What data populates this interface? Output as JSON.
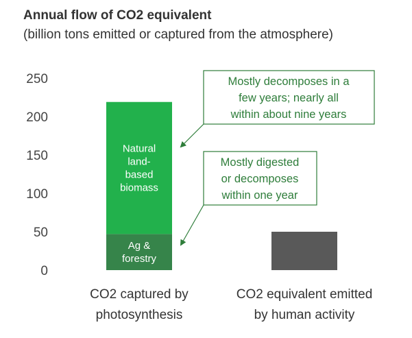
{
  "chart_data": {
    "type": "bar",
    "stacked": true,
    "title": "Annual flow of CO2 equivalent",
    "subtitle": "(billion tons emitted or captured from the atmosphere)",
    "ylim": [
      0,
      250
    ],
    "yticks": [
      0,
      50,
      100,
      150,
      200,
      250
    ],
    "grid": false,
    "categories": [
      {
        "label_lines": [
          "CO2 captured by",
          "photosynthesis"
        ]
      },
      {
        "label_lines": [
          "CO2 equivalent emitted",
          "by human activity"
        ]
      }
    ],
    "segments": [
      {
        "category": 0,
        "base": 0,
        "value": 47,
        "color": "#36844a",
        "label_lines": [
          "Ag &",
          "forestry"
        ]
      },
      {
        "category": 0,
        "base": 47,
        "value": 172,
        "color": "#22b14c",
        "label_lines": [
          "Natural",
          "land-",
          "based",
          "biomass"
        ]
      },
      {
        "category": 1,
        "base": 0,
        "value": 50,
        "color": "#595959",
        "label_lines": []
      }
    ],
    "annotations": [
      {
        "lines": [
          "Mostly decomposes in a",
          "few years; nearly all",
          "within about nine years"
        ],
        "points_to": "Natural land-based biomass"
      },
      {
        "lines": [
          "Mostly digested",
          "or decomposes",
          "within one year"
        ],
        "points_to": "Ag & forestry"
      }
    ],
    "colors": {
      "annotation": "#2e7d3a",
      "text": "#333333"
    }
  }
}
